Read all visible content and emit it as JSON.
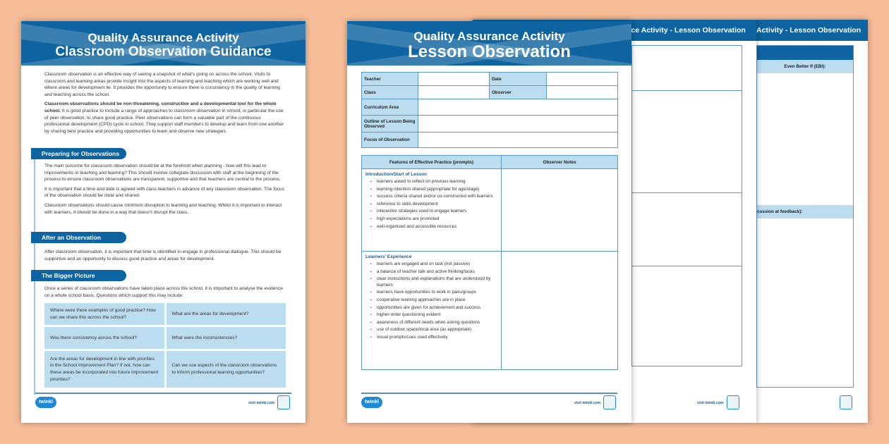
{
  "guidance": {
    "title1": "Quality Assurance Activity",
    "title2": "Classroom Observation Guidance",
    "intro1": "Classroom observation is an effective way of seeing a snapshot of what's going on across the school. Visits to classroom and learning areas provide insight into the aspects of learning and teaching which are working well and where areas for development lie. It provides the opportunity to ensure there is consistency in the quality of learning and teaching across the school.",
    "intro2_bold": "Classroom observations should be non-threatening, constructive and a developmental tool for the whole school.",
    "intro2": " It is good practice to include a range of approaches to classroom observation in school, in particular the use of peer observation, to share good practice. Peer observations can form a valuable part of the continuous professional development (CPD) cycle in school. They support staff members to develop and learn from one another by sharing best practice and providing opportunities to learn and observe new strategies.",
    "sections": [
      {
        "title": "Preparing for Observations",
        "paragraphs": [
          "The main outcome for classroom observation should be at the forefront when planning - how will this lead to improvements in teaching and learning? This should involve collegiate discussion with staff at the beginning of the process to ensure classroom observations are transparent, supportive and that teachers are central to the process.",
          "It is important that a time and date is agreed with class teachers in advance of any classroom observation. The focus of the observation should be clear and shared.",
          "Classroom observations should cause minimum disruption to learning and teaching. Whilst it is important to interact with learners, it should be done in a way that doesn't disrupt the class."
        ]
      },
      {
        "title": "After an Observation",
        "paragraphs": [
          "After classroom observation, it is important that time is identified to engage in professional dialogue. This should be supportive and an opportunity to discuss good practice and areas for development."
        ]
      },
      {
        "title": "The Bigger Picture",
        "paragraphs": [
          "Once a series of classroom observations have taken place across the school, it is important to analyse the evidence on a whole school basis. Questions which support this may include:"
        ]
      }
    ],
    "questions": [
      "Where were there examples of good practice? How can we share this across the school?",
      "What are the areas for development?",
      "Was there consistency across the school?",
      "What were the inconsistencies?",
      "Are the areas for development in line with priorities in the School Improvement Plan? If not, how can these areas be incorporated into future improvement priorities?",
      "Can we use aspects of the classroom observations to inform professional learning opportunities?"
    ]
  },
  "footer": {
    "logo": "twinkl",
    "visit": "visit twinkl.com"
  },
  "lesson": {
    "title1": "Quality Assurance Activity",
    "title2": "Lesson Observation",
    "fields": {
      "teacher": "Teacher",
      "date": "Date",
      "class": "Class",
      "observer": "Observer",
      "curriculum": "Curriculum Area",
      "outline": "Outline of Lesson Being Observed",
      "focus": "Focus of Observation"
    },
    "col1": "Features of Effective Practice (prompts)",
    "col2": "Observer Notes",
    "groups": [
      {
        "title": "Introduction/Start of Lesson",
        "items": [
          "learners asked to reflect on previous learning",
          "learning intention shared (appropriate for age/stage)",
          "success criteria shared and/or co-constructed with learners",
          "reference to skills development",
          "interactive strategies used to engage learners",
          "high expectations are promoted",
          "well-organised and accessible resources"
        ]
      },
      {
        "title": "Learners' Experience",
        "items": [
          "learners are engaged and on task (not passive)",
          "a balance of teacher talk and active thinking/tasks",
          "clear instructions and explanations that are understood by learners",
          "learners have opportunities to work in pairs/groups",
          "cooperative learning approaches are in place",
          "opportunities are given for achievement and success",
          "higher-order questioning evident",
          "awareness of different needs when asking questions",
          "use of outdoor space/local area (as appropriate)",
          "visual prompts/cues used effectively"
        ]
      }
    ]
  },
  "page3": {
    "title": "nce Activity - Lesson Observation"
  },
  "page4": {
    "title": "Activity - Lesson Observation",
    "ebi": "Even Better If (EBI):",
    "discussion": "cussion at feedback):"
  }
}
